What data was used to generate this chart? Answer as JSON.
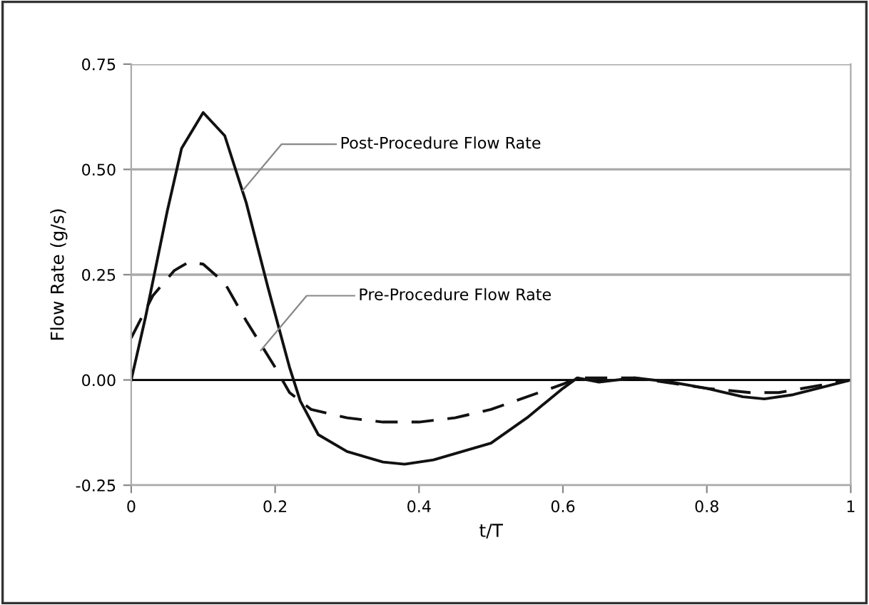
{
  "chart_data": {
    "type": "line",
    "xlabel": "t/T",
    "ylabel": "Flow Rate (g/s)",
    "xlim": [
      0,
      1
    ],
    "xticks": [
      0,
      0.2,
      0.4,
      0.6,
      0.8,
      1
    ],
    "ylim": [
      -0.25,
      0.75
    ],
    "yticks": [
      {
        "value": -0.25,
        "label": "-0.25"
      },
      {
        "value": 0,
        "label": "0.00"
      },
      0.25,
      {
        "value": 0.5,
        "label": "0.50"
      },
      0.75
    ],
    "grid": "y",
    "marker": "none",
    "ref_lines": [
      {
        "axis": "y",
        "value": 0,
        "color": "#000000"
      }
    ],
    "series": [
      {
        "color": "#111111",
        "line_style": "solid",
        "x": [
          0,
          0.02,
          0.05,
          0.07,
          0.1,
          0.13,
          0.16,
          0.19,
          0.22,
          0.235,
          0.26,
          0.3,
          0.35,
          0.38,
          0.42,
          0.5,
          0.55,
          0.6,
          0.62,
          0.65,
          0.7,
          0.75,
          0.8,
          0.85,
          0.88,
          0.92,
          1
        ],
        "values": [
          0,
          0.15,
          0.4,
          0.55,
          0.635,
          0.58,
          0.42,
          0.22,
          0.03,
          -0.05,
          -0.13,
          -0.17,
          -0.195,
          -0.2,
          -0.19,
          -0.15,
          -0.09,
          -0.02,
          0.005,
          -0.005,
          0.005,
          -0.005,
          -0.02,
          -0.04,
          -0.045,
          -0.035,
          0
        ]
      },
      {
        "color": "#111111",
        "line_style": "dashed",
        "x": [
          0,
          0.03,
          0.06,
          0.08,
          0.1,
          0.13,
          0.16,
          0.2,
          0.22,
          0.25,
          0.3,
          0.35,
          0.4,
          0.45,
          0.5,
          0.6,
          0.62,
          0.7,
          0.8,
          0.86,
          0.9,
          0.95,
          1
        ],
        "values": [
          0.1,
          0.2,
          0.26,
          0.28,
          0.275,
          0.23,
          0.14,
          0.03,
          -0.03,
          -0.07,
          -0.09,
          -0.1,
          -0.1,
          -0.09,
          -0.07,
          -0.01,
          0.005,
          0.005,
          -0.02,
          -0.03,
          -0.03,
          -0.015,
          0
        ]
      }
    ],
    "annotations": [
      {
        "text": "Post-Procedure Flow Rate",
        "x": 0.155,
        "y": 0.45
      },
      {
        "text": "Pre-Procedure Flow Rate",
        "x": 0.18,
        "y": 0.07
      }
    ]
  }
}
